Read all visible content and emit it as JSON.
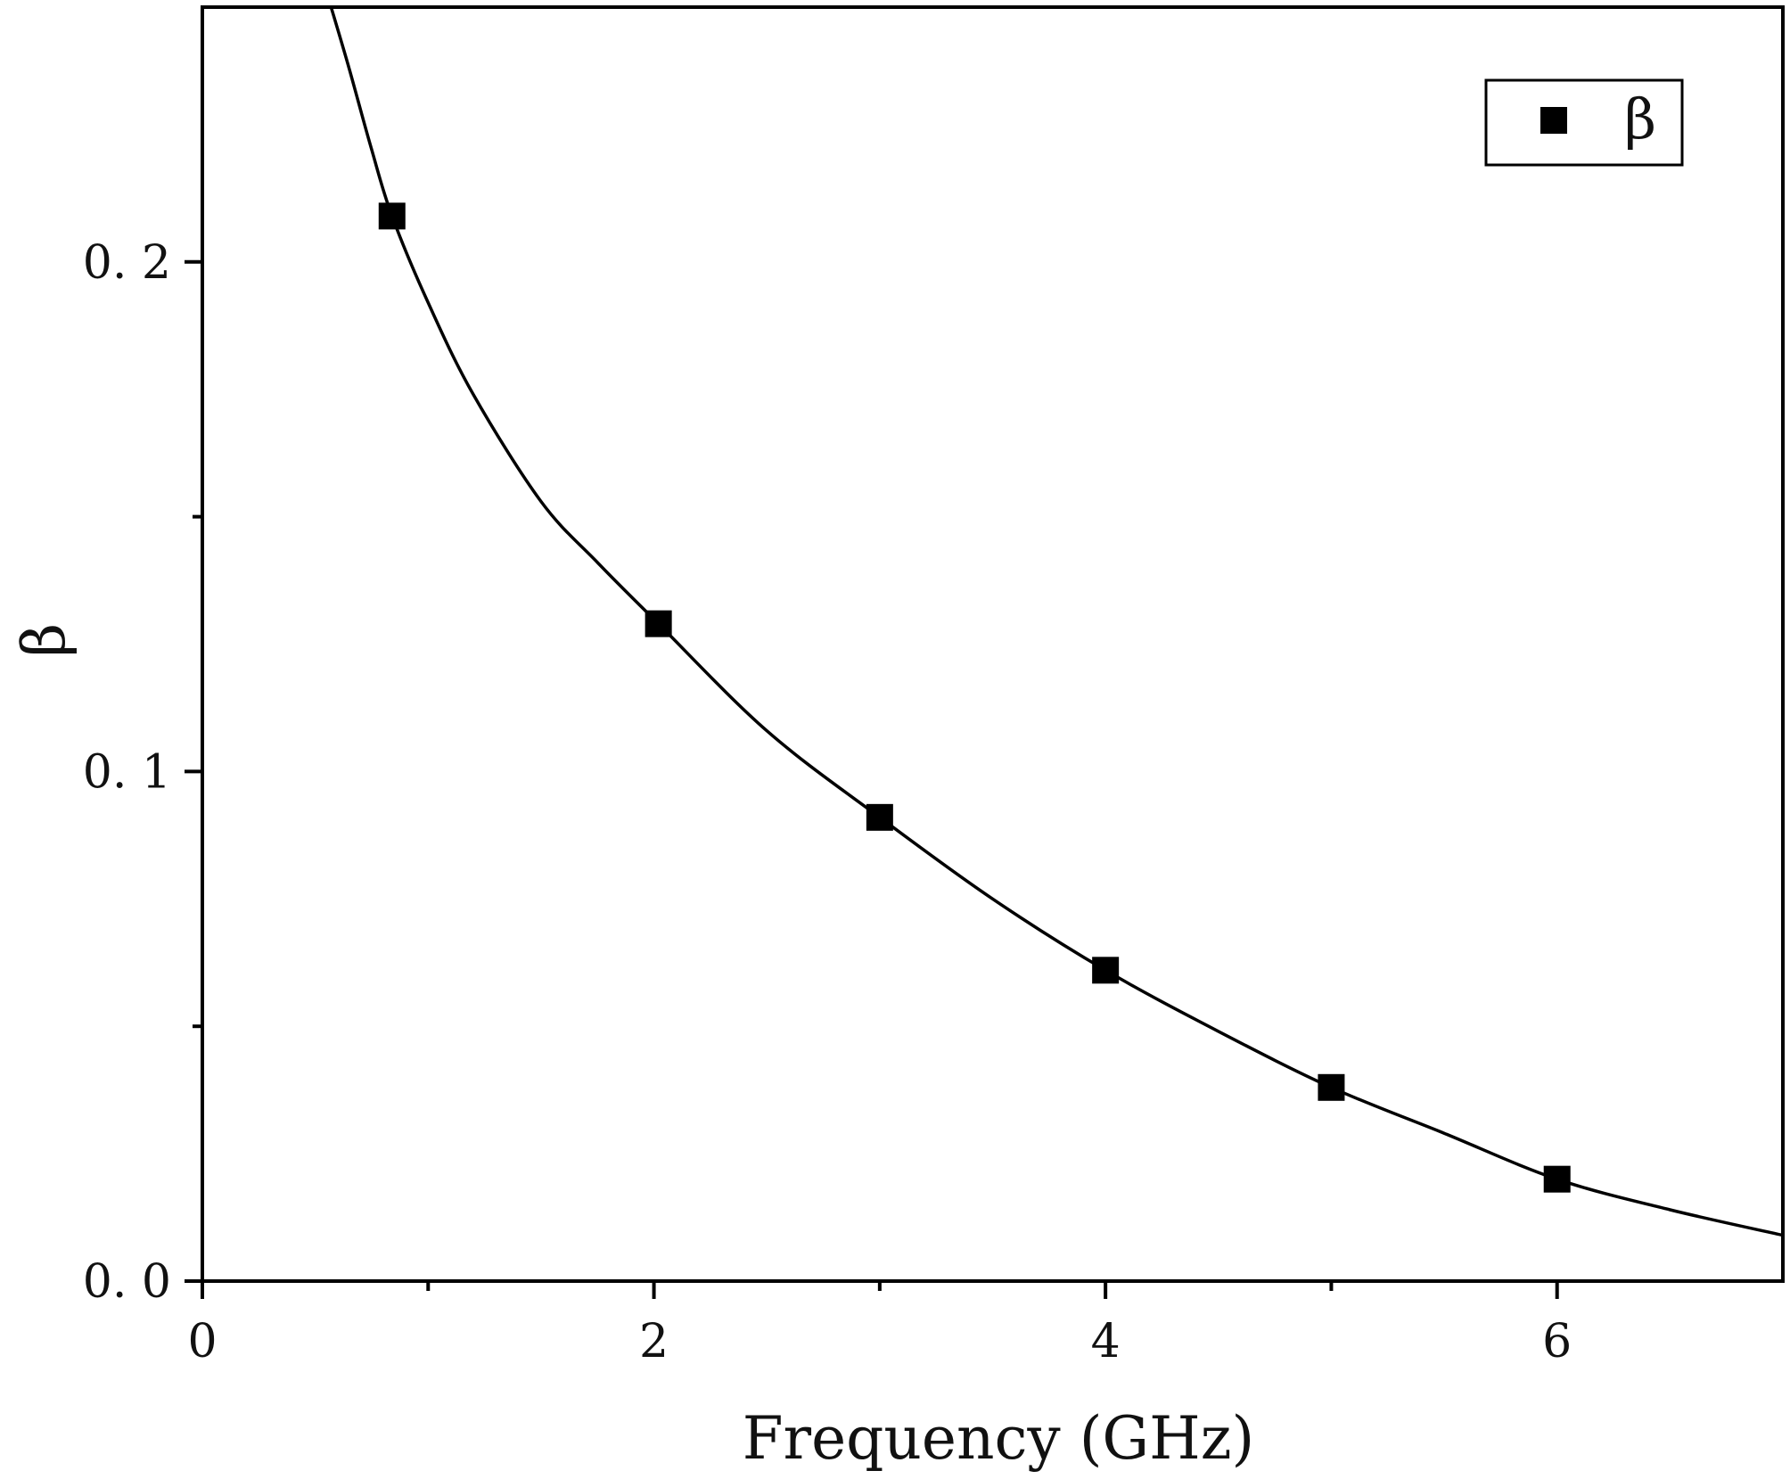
{
  "chart_data": {
    "type": "scatter",
    "xlabel": "Frequency (GHz)",
    "ylabel": "β",
    "xlim": [
      0,
      7
    ],
    "ylim": [
      0,
      0.25
    ],
    "x_ticks": [
      0,
      2,
      4,
      6
    ],
    "x_tick_labels": [
      "0",
      "2",
      "4",
      "6"
    ],
    "y_ticks": [
      0,
      0.1,
      0.2
    ],
    "y_tick_labels": [
      "0. 0",
      "0. 1",
      "0. 2"
    ],
    "grid": false,
    "legend": {
      "placement": "top-right",
      "entries": [
        "β"
      ]
    },
    "series": [
      {
        "name": "β",
        "marker": "square",
        "color": "#000000",
        "x": [
          0.84,
          2.02,
          3.0,
          4.0,
          5.0,
          6.0
        ],
        "y": [
          0.209,
          0.129,
          0.091,
          0.061,
          0.038,
          0.02
        ]
      }
    ],
    "fit_curve": {
      "x": [
        0.57,
        0.65,
        0.75,
        0.84,
        1.0,
        1.2,
        1.5,
        1.75,
        2.02,
        2.5,
        3.0,
        3.5,
        4.0,
        4.5,
        5.0,
        5.5,
        6.0,
        6.5,
        7.0
      ],
      "y": [
        0.25,
        0.238,
        0.222,
        0.209,
        0.192,
        0.174,
        0.153,
        0.141,
        0.129,
        0.108,
        0.091,
        0.075,
        0.061,
        0.049,
        0.038,
        0.029,
        0.02,
        0.014,
        0.009
      ]
    }
  }
}
